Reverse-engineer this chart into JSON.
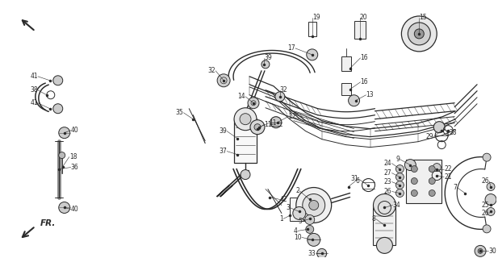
{
  "bg_color": "#ffffff",
  "line_color": "#2a2a2a",
  "fr_label": "FR."
}
